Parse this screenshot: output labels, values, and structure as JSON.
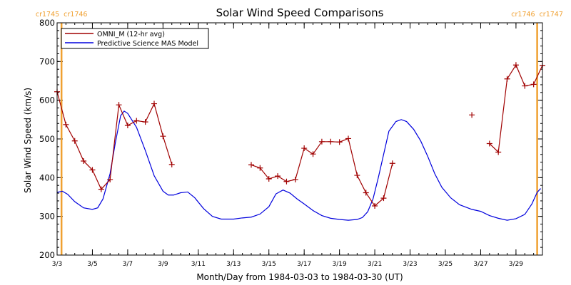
{
  "chart_data": {
    "type": "line",
    "title": "Solar Wind Speed Comparisons",
    "xlabel": "Month/Day from 1984-03-03 to 1984-03-30 (UT)",
    "ylabel": "Solar Wind Speed (km/s)",
    "xlim": [
      0,
      27.5
    ],
    "ylim": [
      200,
      800
    ],
    "yticks": [
      200,
      300,
      400,
      500,
      600,
      700,
      800
    ],
    "y_minor_step": 20,
    "xticks": [
      {
        "x": 0,
        "label": "3/3"
      },
      {
        "x": 2,
        "label": "3/5"
      },
      {
        "x": 4,
        "label": "3/7"
      },
      {
        "x": 6,
        "label": "3/9"
      },
      {
        "x": 8,
        "label": "3/11"
      },
      {
        "x": 10,
        "label": "3/13"
      },
      {
        "x": 12,
        "label": "3/15"
      },
      {
        "x": 14,
        "label": "3/17"
      },
      {
        "x": 16,
        "label": "3/19"
      },
      {
        "x": 18,
        "label": "3/21"
      },
      {
        "x": 20,
        "label": "3/23"
      },
      {
        "x": 22,
        "label": "3/25"
      },
      {
        "x": 24,
        "label": "3/27"
      },
      {
        "x": 26,
        "label": "3/29"
      }
    ],
    "x_minor_step": 0.5,
    "carrington_markers": [
      {
        "x": 0.25,
        "left_label": "cr1745",
        "right_label": "cr1746",
        "color": "#f0a030"
      },
      {
        "x": 27.2,
        "left_label": "cr1746",
        "right_label": "cr1747",
        "color": "#f0a030"
      }
    ],
    "legend_position": "top-left",
    "series": [
      {
        "name": "OMNI_M (12-hr avg)",
        "color": "#a00000",
        "marker": "+",
        "segments": [
          [
            [
              0.0,
              622
            ],
            [
              0.5,
              537
            ],
            [
              1.0,
              495
            ],
            [
              1.5,
              443
            ],
            [
              2.0,
              420
            ],
            [
              2.5,
              370
            ],
            [
              3.0,
              395
            ],
            [
              3.5,
              588
            ],
            [
              4.0,
              535
            ],
            [
              4.5,
              547
            ],
            [
              5.0,
              544
            ],
            [
              5.5,
              591
            ],
            [
              6.0,
              507
            ],
            [
              6.5,
              434
            ]
          ],
          [
            [
              11.0,
              433
            ],
            [
              11.5,
              425
            ],
            [
              12.0,
              397
            ],
            [
              12.5,
              404
            ],
            [
              13.0,
              390
            ],
            [
              13.5,
              395
            ],
            [
              14.0,
              476
            ],
            [
              14.5,
              461
            ],
            [
              15.0,
              493
            ],
            [
              15.5,
              493
            ],
            [
              16.0,
              492
            ],
            [
              16.5,
              501
            ],
            [
              17.0,
              406
            ],
            [
              17.5,
              361
            ],
            [
              18.0,
              327
            ],
            [
              18.5,
              347
            ],
            [
              19.0,
              437
            ]
          ],
          [
            [
              23.5,
              562
            ]
          ],
          [
            [
              24.5,
              488
            ],
            [
              25.0,
              466
            ],
            [
              25.5,
              655
            ],
            [
              26.0,
              691
            ],
            [
              26.5,
              637
            ],
            [
              27.0,
              641
            ],
            [
              27.5,
              690
            ]
          ]
        ]
      },
      {
        "name": "Predictive Science MAS Model",
        "color": "#0000dd",
        "marker": "none",
        "points": [
          [
            0.0,
            362
          ],
          [
            0.3,
            365
          ],
          [
            0.6,
            357
          ],
          [
            1.0,
            338
          ],
          [
            1.5,
            322
          ],
          [
            2.0,
            318
          ],
          [
            2.3,
            322
          ],
          [
            2.6,
            345
          ],
          [
            3.0,
            410
          ],
          [
            3.3,
            490
          ],
          [
            3.6,
            560
          ],
          [
            3.8,
            572
          ],
          [
            4.0,
            566
          ],
          [
            4.5,
            530
          ],
          [
            5.0,
            470
          ],
          [
            5.5,
            405
          ],
          [
            6.0,
            365
          ],
          [
            6.3,
            355
          ],
          [
            6.6,
            355
          ],
          [
            7.0,
            361
          ],
          [
            7.4,
            363
          ],
          [
            7.8,
            348
          ],
          [
            8.3,
            320
          ],
          [
            8.8,
            300
          ],
          [
            9.3,
            293
          ],
          [
            10.0,
            293
          ],
          [
            10.5,
            296
          ],
          [
            11.0,
            298
          ],
          [
            11.5,
            306
          ],
          [
            12.0,
            325
          ],
          [
            12.4,
            358
          ],
          [
            12.8,
            368
          ],
          [
            13.2,
            360
          ],
          [
            13.6,
            345
          ],
          [
            14.0,
            332
          ],
          [
            14.5,
            315
          ],
          [
            15.0,
            302
          ],
          [
            15.5,
            295
          ],
          [
            16.0,
            292
          ],
          [
            16.5,
            290
          ],
          [
            17.0,
            292
          ],
          [
            17.3,
            297
          ],
          [
            17.6,
            312
          ],
          [
            17.9,
            345
          ],
          [
            18.2,
            400
          ],
          [
            18.5,
            460
          ],
          [
            18.8,
            520
          ],
          [
            19.2,
            545
          ],
          [
            19.5,
            550
          ],
          [
            19.8,
            545
          ],
          [
            20.2,
            525
          ],
          [
            20.6,
            495
          ],
          [
            21.0,
            455
          ],
          [
            21.4,
            410
          ],
          [
            21.8,
            375
          ],
          [
            22.3,
            348
          ],
          [
            22.8,
            330
          ],
          [
            23.5,
            318
          ],
          [
            24.0,
            313
          ],
          [
            24.5,
            302
          ],
          [
            25.0,
            295
          ],
          [
            25.5,
            290
          ],
          [
            26.0,
            294
          ],
          [
            26.5,
            305
          ],
          [
            26.9,
            332
          ],
          [
            27.2,
            362
          ],
          [
            27.4,
            372
          ]
        ]
      }
    ]
  }
}
